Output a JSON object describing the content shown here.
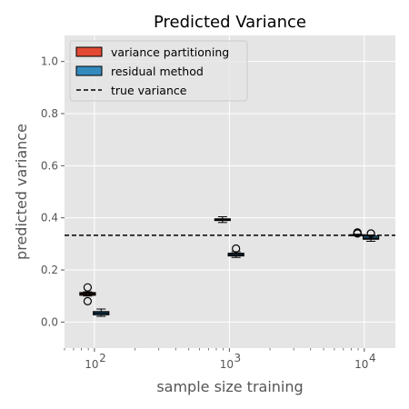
{
  "chart_data": {
    "type": "box",
    "title": "Predicted Variance",
    "xlabel": "sample size training",
    "ylabel": "predicted variance",
    "x_scale": "log",
    "xlim": [
      60,
      17000
    ],
    "ylim": [
      -0.1,
      1.1
    ],
    "y_ticks": [
      0.0,
      0.2,
      0.4,
      0.6,
      0.8,
      1.0
    ],
    "y_tick_labels": [
      "0.0",
      "0.2",
      "0.4",
      "0.6",
      "0.8",
      "1.0"
    ],
    "x_ticks": [
      100,
      1000,
      10000
    ],
    "x_tick_labels": [
      {
        "base": "10",
        "exp": "2"
      },
      {
        "base": "10",
        "exp": "3"
      },
      {
        "base": "10",
        "exp": "4"
      }
    ],
    "grid": true,
    "legend_position": "top-left",
    "reference_line": {
      "name": "true variance",
      "y": 0.333,
      "style": "dashed",
      "color": "#000000"
    },
    "series": [
      {
        "name": "variance partitioning",
        "color": "#E24A33",
        "boxes": [
          {
            "x": 89,
            "whisker_low": 0.1,
            "q1": 0.103,
            "median": 0.108,
            "q3": 0.113,
            "whisker_high": 0.116,
            "outliers": [
              0.08,
              0.133
            ]
          },
          {
            "x": 890,
            "whisker_low": 0.382,
            "q1": 0.39,
            "median": 0.393,
            "q3": 0.396,
            "whisker_high": 0.404,
            "outliers": []
          },
          {
            "x": 8900,
            "whisker_low": 0.331,
            "q1": 0.332,
            "median": 0.333,
            "q3": 0.335,
            "whisker_high": 0.337,
            "outliers": [
              0.34,
              0.344
            ]
          }
        ]
      },
      {
        "name": "residual method",
        "color": "#348ABD",
        "boxes": [
          {
            "x": 112,
            "whisker_low": 0.022,
            "q1": 0.028,
            "median": 0.034,
            "q3": 0.04,
            "whisker_high": 0.05,
            "outliers": []
          },
          {
            "x": 1120,
            "whisker_low": 0.248,
            "q1": 0.254,
            "median": 0.259,
            "q3": 0.264,
            "whisker_high": 0.27,
            "outliers": [
              0.282
            ]
          },
          {
            "x": 11200,
            "whisker_low": 0.31,
            "q1": 0.318,
            "median": 0.322,
            "q3": 0.33,
            "whisker_high": 0.334,
            "outliers": [
              0.34
            ]
          }
        ]
      }
    ]
  }
}
